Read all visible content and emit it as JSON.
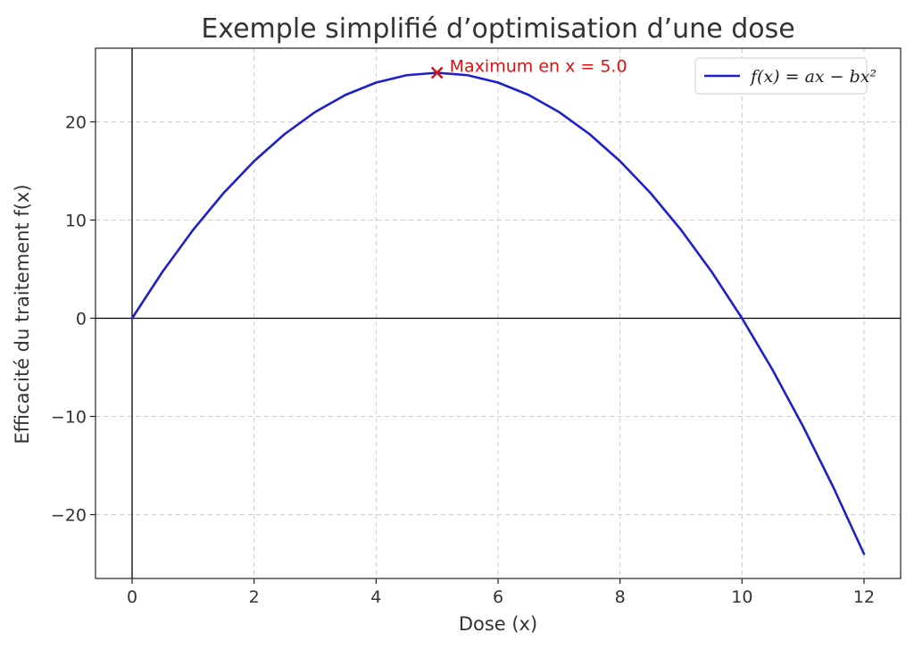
{
  "chart_data": {
    "type": "line",
    "title": "Exemple simplifié d’optimisation d’une dose",
    "xlabel": "Dose (x)",
    "ylabel": "Efficacité du traitement f(x)",
    "xlim": [
      -0.6,
      12.6
    ],
    "ylim": [
      -26.5,
      27.5
    ],
    "xticks": [
      0,
      2,
      4,
      6,
      8,
      10,
      12
    ],
    "xtick_labels": [
      "0",
      "2",
      "4",
      "6",
      "8",
      "10",
      "12"
    ],
    "yticks": [
      -20,
      -10,
      0,
      10,
      20
    ],
    "ytick_labels": [
      "−20",
      "−10",
      "0",
      "10",
      "20"
    ],
    "grid": true,
    "legend_position": "top-right",
    "series": [
      {
        "name": "f(x) = ax − bx²",
        "color": "#1f1fcc",
        "x": [
          0,
          0.5,
          1,
          1.5,
          2,
          2.5,
          3,
          3.5,
          4,
          4.5,
          5,
          5.5,
          6,
          6.5,
          7,
          7.5,
          8,
          8.5,
          9,
          9.5,
          10,
          10.5,
          11,
          11.5,
          12
        ],
        "y": [
          0,
          4.75,
          9,
          12.75,
          16,
          18.75,
          21,
          22.75,
          24,
          24.75,
          25,
          24.75,
          24,
          22.75,
          21,
          18.75,
          16,
          12.75,
          9,
          4.75,
          0,
          -5.25,
          -11,
          -17.25,
          -24
        ]
      }
    ],
    "annotations": [
      {
        "text": "Maximum en x = 5.0",
        "x": 5,
        "y": 25,
        "marker": "x",
        "color": "#dd1111"
      }
    ]
  }
}
